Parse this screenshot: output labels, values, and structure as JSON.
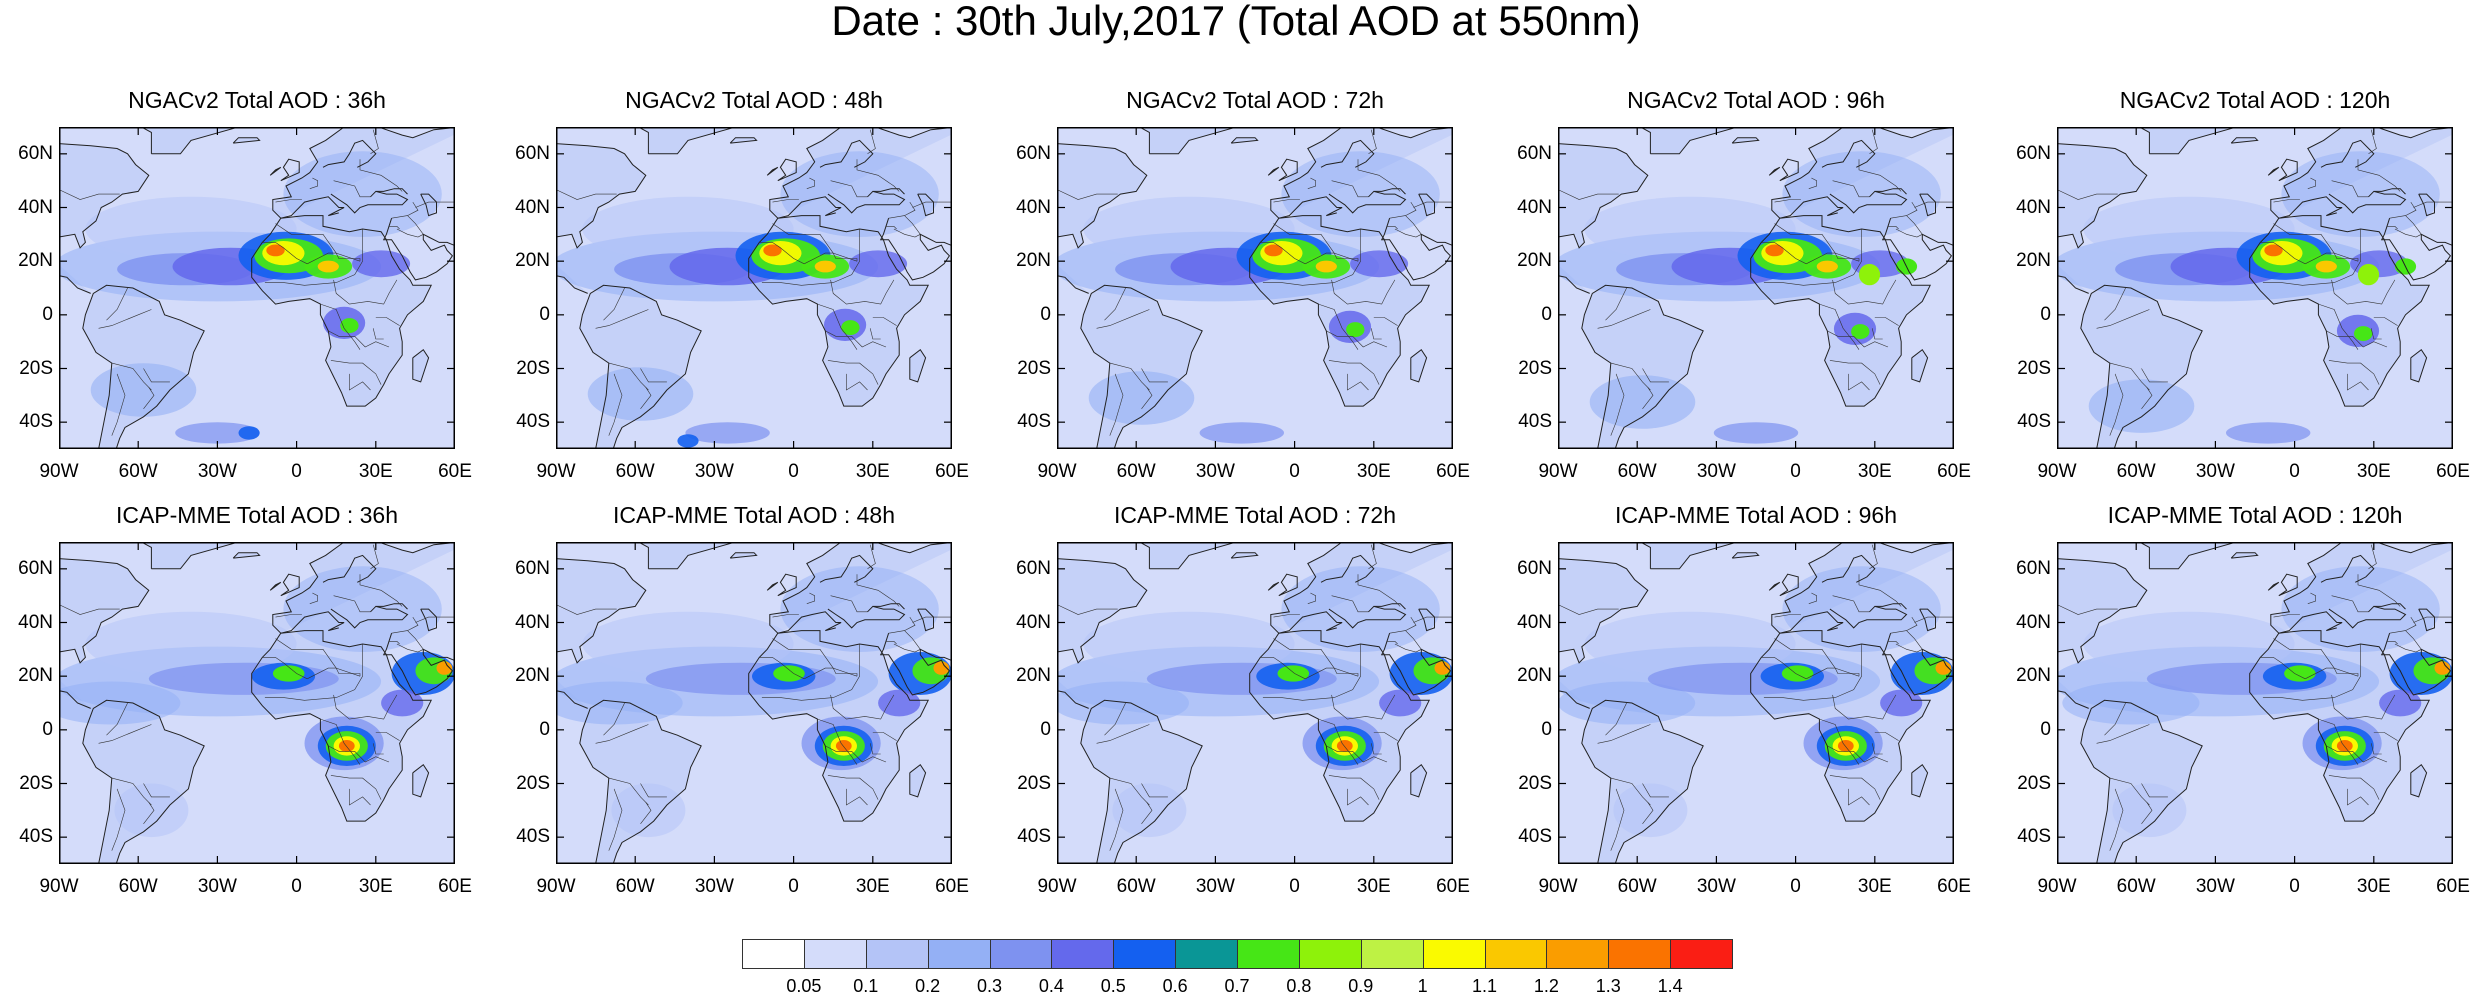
{
  "title": "Date : 30th July,2017 (Total AOD at 550nm)",
  "axes": {
    "lat_labels": [
      "60N",
      "40N",
      "20N",
      "0",
      "20S",
      "40S"
    ],
    "lat_values": [
      60,
      40,
      20,
      0,
      -20,
      -40
    ],
    "lon_labels": [
      "90W",
      "60W",
      "30W",
      "0",
      "30E",
      "60E"
    ],
    "lon_values": [
      -90,
      -60,
      -30,
      0,
      30,
      60
    ],
    "lon_range": [
      -90,
      60
    ],
    "lat_range": [
      -50,
      70
    ]
  },
  "rows": [
    {
      "model": "NGACv2",
      "panels": [
        {
          "title": "NGACv2 Total AOD : 36h",
          "lead": "36h"
        },
        {
          "title": "NGACv2 Total AOD : 48h",
          "lead": "48h"
        },
        {
          "title": "NGACv2 Total AOD : 72h",
          "lead": "72h"
        },
        {
          "title": "NGACv2 Total AOD : 96h",
          "lead": "96h"
        },
        {
          "title": "NGACv2 Total AOD : 120h",
          "lead": "120h"
        }
      ]
    },
    {
      "model": "ICAP-MME",
      "panels": [
        {
          "title": "ICAP-MME Total AOD : 36h",
          "lead": "36h"
        },
        {
          "title": "ICAP-MME Total AOD : 48h",
          "lead": "48h"
        },
        {
          "title": "ICAP-MME Total AOD : 72h",
          "lead": "72h"
        },
        {
          "title": "ICAP-MME Total AOD : 96h",
          "lead": "96h"
        },
        {
          "title": "ICAP-MME Total AOD : 120h",
          "lead": "120h"
        }
      ]
    }
  ],
  "colorbar": {
    "labels": [
      "0.05",
      "0.1",
      "0.2",
      "0.3",
      "0.4",
      "0.5",
      "0.6",
      "0.7",
      "0.8",
      "0.9",
      "1",
      "1.1",
      "1.2",
      "1.3",
      "1.4"
    ],
    "colors": [
      "#ffffff",
      "#d4dcfa",
      "#b4c4f7",
      "#94b0f5",
      "#7e92f0",
      "#6469ec",
      "#1460f0",
      "#0a9696",
      "#46e616",
      "#8ef20a",
      "#bef244",
      "#fafa00",
      "#fac800",
      "#fa9d00",
      "#fa7300",
      "#fa1e14"
    ]
  }
}
